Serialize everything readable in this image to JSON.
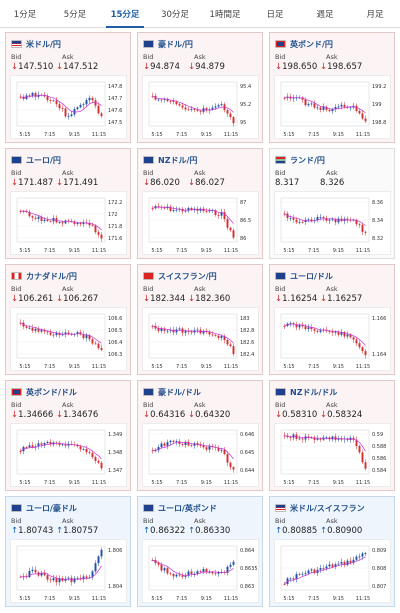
{
  "tabs": [
    "1分足",
    "5分足",
    "15分足",
    "30分足",
    "1時間足",
    "日足",
    "週足",
    "月足"
  ],
  "active_tab": 2,
  "time_labels": [
    "5:15",
    "7:15",
    "9:15",
    "11:15"
  ],
  "colors": {
    "up_candle": "#1f4fa8",
    "down_candle": "#d32f2f",
    "moving_average": "#c82fd8",
    "down_arrow": "#c62828",
    "up_arrow": "#1565c0"
  },
  "labels": {
    "bid": "Bid",
    "ask": "Ask"
  },
  "pairs": [
    {
      "name": "米ドル/円",
      "flag": "us",
      "dir": "down",
      "bid": "147.510",
      "ask": "147.512",
      "ticks": [
        "147.8",
        "147.7",
        "147.6",
        "147.5"
      ],
      "trend": [
        0.35,
        0.25,
        0.3,
        0.45,
        0.8,
        0.6,
        0.3,
        0.85
      ]
    },
    {
      "name": "豪ドル/円",
      "flag": "au",
      "dir": "down",
      "bid": "94.874",
      "ask": "94.879",
      "ticks": [
        "95.4",
        "95.2",
        "95"
      ],
      "trend": [
        0.35,
        0.4,
        0.5,
        0.6,
        0.7,
        0.6,
        0.55,
        0.95
      ]
    },
    {
      "name": "英ポンド/円",
      "flag": "gb",
      "dir": "down",
      "bid": "198.650",
      "ask": "198.657",
      "ticks": [
        "199.2",
        "199",
        "198.8"
      ],
      "trend": [
        0.3,
        0.35,
        0.5,
        0.6,
        0.65,
        0.55,
        0.55,
        0.9
      ]
    },
    {
      "name": "ユーロ/円",
      "flag": "eu",
      "dir": "down",
      "bid": "171.487",
      "ask": "171.491",
      "ticks": [
        "172.2",
        "172",
        "171.8",
        "171.6"
      ],
      "trend": [
        0.25,
        0.45,
        0.5,
        0.5,
        0.55,
        0.55,
        0.6,
        0.95
      ]
    },
    {
      "name": "NZドル/円",
      "flag": "nz",
      "dir": "down",
      "bid": "86.020",
      "ask": "86.027",
      "ticks": [
        "87",
        "86.5",
        "86"
      ],
      "trend": [
        0.2,
        0.2,
        0.25,
        0.25,
        0.25,
        0.3,
        0.35,
        0.95
      ]
    },
    {
      "name": "ランド/円",
      "flag": "za",
      "dir": "neutral",
      "bid": "8.317",
      "ask": "8.326",
      "ticks": [
        "8.36",
        "8.34",
        "8.32"
      ],
      "trend": [
        0.35,
        0.55,
        0.5,
        0.45,
        0.55,
        0.5,
        0.5,
        0.85
      ]
    },
    {
      "name": "カナダドル/円",
      "flag": "ca",
      "dir": "down",
      "bid": "106.261",
      "ask": "106.267",
      "ticks": [
        "106.6",
        "106.5",
        "106.4",
        "106.3"
      ],
      "trend": [
        0.2,
        0.35,
        0.4,
        0.45,
        0.4,
        0.45,
        0.55,
        0.9
      ]
    },
    {
      "name": "スイスフラン/円",
      "flag": "ch",
      "dir": "down",
      "bid": "182.344",
      "ask": "182.360",
      "ticks": [
        "183",
        "182.8",
        "182.6",
        "182.4"
      ],
      "trend": [
        0.3,
        0.35,
        0.35,
        0.4,
        0.4,
        0.45,
        0.55,
        0.9
      ]
    },
    {
      "name": "ユーロ/ドル",
      "flag": "eu",
      "dir": "down",
      "bid": "1.16254",
      "ask": "1.16257",
      "ticks": [
        "1.166",
        "1.164"
      ],
      "trend": [
        0.2,
        0.25,
        0.3,
        0.35,
        0.4,
        0.45,
        0.6,
        0.95
      ]
    },
    {
      "name": "英ポンド/ドル",
      "flag": "gb",
      "dir": "down",
      "bid": "1.34666",
      "ask": "1.34676",
      "ticks": [
        "1.349",
        "1.348",
        "1.347"
      ],
      "trend": [
        0.45,
        0.35,
        0.3,
        0.25,
        0.3,
        0.35,
        0.5,
        0.9
      ]
    },
    {
      "name": "豪ドル/ドル",
      "flag": "au",
      "dir": "down",
      "bid": "0.64316",
      "ask": "0.64320",
      "ticks": [
        "0.646",
        "0.645",
        "0.644"
      ],
      "trend": [
        0.45,
        0.3,
        0.25,
        0.3,
        0.35,
        0.4,
        0.5,
        0.95
      ]
    },
    {
      "name": "NZドル/ドル",
      "flag": "nz",
      "dir": "down",
      "bid": "0.58310",
      "ask": "0.58324",
      "ticks": [
        "0.59",
        "0.588",
        "0.586",
        "0.584"
      ],
      "trend": [
        0.1,
        0.12,
        0.15,
        0.15,
        0.15,
        0.18,
        0.2,
        0.95
      ]
    },
    {
      "name": "ユーロ/豪ドル",
      "flag": "eu",
      "dir": "up",
      "bid": "1.80743",
      "ask": "1.80757",
      "ticks": [
        "1.806",
        "1.804"
      ],
      "trend": [
        0.75,
        0.6,
        0.7,
        0.8,
        0.8,
        0.8,
        0.7,
        0.1
      ]
    },
    {
      "name": "ユーロ/英ポンド",
      "flag": "eu",
      "dir": "up",
      "bid": "0.86322",
      "ask": "0.86330",
      "ticks": [
        "0.864",
        "0.8635",
        "0.863"
      ],
      "trend": [
        0.35,
        0.55,
        0.7,
        0.65,
        0.55,
        0.6,
        0.65,
        0.3
      ]
    },
    {
      "name": "米ドル/スイスフラン",
      "flag": "us",
      "dir": "up",
      "bid": "0.80885",
      "ask": "0.80900",
      "ticks": [
        "0.809",
        "0.808",
        "0.807"
      ],
      "trend": [
        0.85,
        0.7,
        0.6,
        0.55,
        0.45,
        0.4,
        0.3,
        0.1
      ]
    }
  ]
}
